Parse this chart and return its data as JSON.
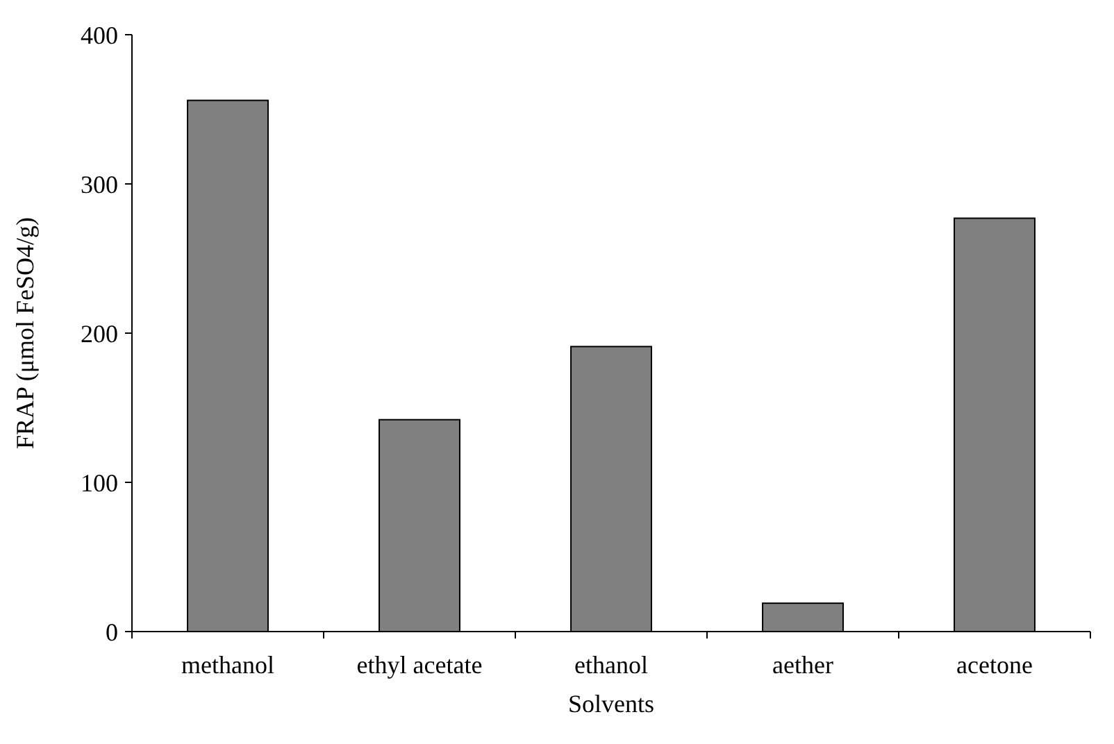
{
  "chart_data": {
    "type": "bar",
    "xlabel": "Solvents",
    "ylabel": "FRAP (μmol FeSO4/g)",
    "categories": [
      "methanol",
      "ethyl acetate",
      "ethanol",
      "aether",
      "acetone"
    ],
    "values": [
      356,
      142,
      191,
      19,
      277
    ],
    "color": "#808080",
    "ylim": [
      0,
      400
    ],
    "yticks": [
      0,
      100,
      200,
      300,
      400
    ],
    "grid": false
  }
}
